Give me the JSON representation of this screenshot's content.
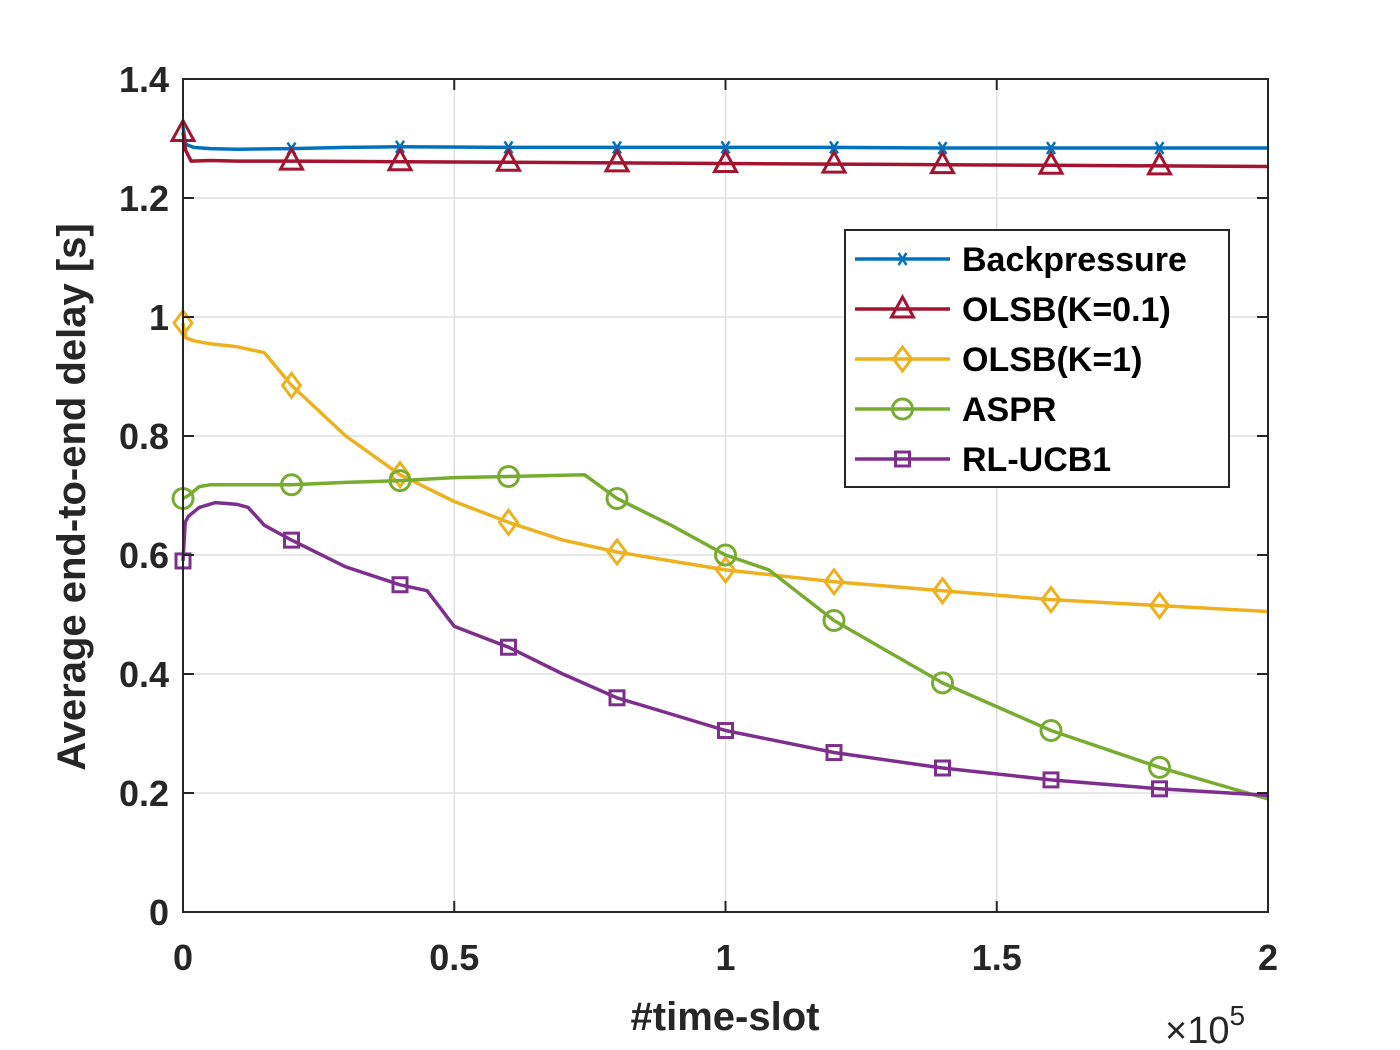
{
  "chart_data": {
    "type": "line",
    "title": "",
    "xlabel": "#time-slot",
    "ylabel": "Average end-to-end delay [s]",
    "x_multiplier_label": {
      "base": "×10",
      "exp": "5"
    },
    "xlim": [
      0,
      2
    ],
    "ylim": [
      0,
      1.4
    ],
    "xticks": [
      0,
      0.5,
      1,
      1.5,
      2
    ],
    "xtick_labels": [
      "0",
      "0.5",
      "1",
      "1.5",
      "2"
    ],
    "yticks": [
      0,
      0.2,
      0.4,
      0.6,
      0.8,
      1,
      1.2,
      1.4
    ],
    "ytick_labels": [
      "0",
      "0.2",
      "0.4",
      "0.6",
      "0.8",
      "1",
      "1.2",
      "1.4"
    ],
    "grid": true,
    "legend_position": "upper-right",
    "series": [
      {
        "name": "Backpressure",
        "color": "#0072BD",
        "marker": "asterisk",
        "x": [
          0,
          0.005,
          0.02,
          0.05,
          0.1,
          0.2,
          0.3,
          0.4,
          0.6,
          0.8,
          1.0,
          1.2,
          1.4,
          1.6,
          1.8,
          2.0
        ],
        "y": [
          1.32,
          1.29,
          1.285,
          1.283,
          1.282,
          1.283,
          1.285,
          1.286,
          1.285,
          1.285,
          1.285,
          1.285,
          1.284,
          1.284,
          1.284,
          1.284
        ],
        "marker_x": [
          0.2,
          0.4,
          0.6,
          0.8,
          1.0,
          1.2,
          1.4,
          1.6,
          1.8
        ]
      },
      {
        "name": "OLSB(K=0.1)",
        "color": "#A2142F",
        "marker": "triangle",
        "x": [
          0,
          0.005,
          0.015,
          0.05,
          0.1,
          0.2,
          0.4,
          0.6,
          0.8,
          1.0,
          1.2,
          1.4,
          1.6,
          1.8,
          2.0
        ],
        "y": [
          1.31,
          1.28,
          1.262,
          1.263,
          1.262,
          1.262,
          1.261,
          1.26,
          1.259,
          1.258,
          1.257,
          1.256,
          1.255,
          1.254,
          1.253
        ],
        "marker_x": [
          0,
          0.2,
          0.4,
          0.6,
          0.8,
          1.0,
          1.2,
          1.4,
          1.6,
          1.8
        ]
      },
      {
        "name": "OLSB(K=1)",
        "color": "#EDB120",
        "marker": "diamond",
        "x": [
          0,
          0.005,
          0.02,
          0.05,
          0.1,
          0.15,
          0.2,
          0.3,
          0.4,
          0.5,
          0.6,
          0.7,
          0.8,
          0.9,
          1.0,
          1.2,
          1.4,
          1.6,
          1.8,
          2.0
        ],
        "y": [
          0.99,
          0.965,
          0.96,
          0.955,
          0.95,
          0.94,
          0.885,
          0.8,
          0.735,
          0.69,
          0.655,
          0.625,
          0.605,
          0.59,
          0.575,
          0.555,
          0.54,
          0.525,
          0.515,
          0.505
        ],
        "marker_x": [
          0,
          0.2,
          0.4,
          0.6,
          0.8,
          1.0,
          1.2,
          1.4,
          1.6,
          1.8
        ]
      },
      {
        "name": "ASPR",
        "color": "#77AC30",
        "marker": "circle",
        "x": [
          0,
          0.01,
          0.03,
          0.05,
          0.1,
          0.2,
          0.3,
          0.4,
          0.5,
          0.6,
          0.74,
          0.8,
          0.9,
          1.0,
          1.08,
          1.2,
          1.4,
          1.6,
          1.8,
          2.0
        ],
        "y": [
          0.695,
          0.7,
          0.715,
          0.718,
          0.718,
          0.718,
          0.722,
          0.725,
          0.73,
          0.732,
          0.735,
          0.695,
          0.65,
          0.6,
          0.575,
          0.49,
          0.385,
          0.305,
          0.243,
          0.19
        ],
        "marker_x": [
          0,
          0.2,
          0.4,
          0.6,
          0.8,
          1.0,
          1.2,
          1.4,
          1.6,
          1.8
        ]
      },
      {
        "name": "RL-UCB1",
        "color": "#7E2F8E",
        "marker": "square",
        "x": [
          0,
          0.004,
          0.01,
          0.03,
          0.06,
          0.1,
          0.12,
          0.15,
          0.2,
          0.3,
          0.4,
          0.45,
          0.5,
          0.6,
          0.7,
          0.8,
          1.0,
          1.2,
          1.4,
          1.6,
          1.8,
          2.0
        ],
        "y": [
          0.59,
          0.655,
          0.665,
          0.68,
          0.688,
          0.685,
          0.68,
          0.65,
          0.625,
          0.58,
          0.55,
          0.54,
          0.48,
          0.445,
          0.4,
          0.36,
          0.305,
          0.268,
          0.242,
          0.222,
          0.207,
          0.196
        ],
        "marker_x": [
          0,
          0.2,
          0.4,
          0.6,
          0.8,
          1.0,
          1.2,
          1.4,
          1.6,
          1.8
        ]
      }
    ]
  }
}
